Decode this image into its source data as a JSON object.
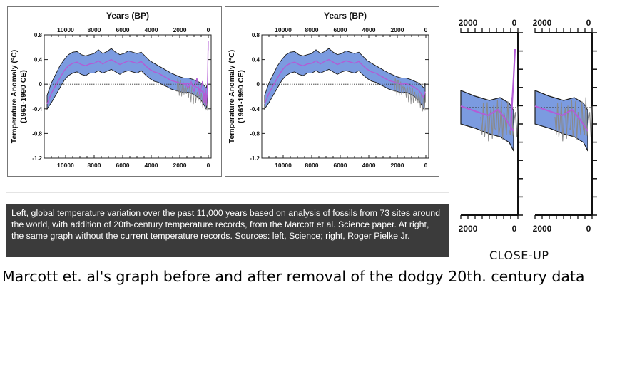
{
  "chart_data": [
    {
      "type": "area",
      "panel": "left",
      "title": "Years (BP)",
      "xlabel": "",
      "ylabel": "Temperature Anomaly (°C)",
      "ylabel2": "(1961-1990 CE)",
      "x_ticks": [
        "10000",
        "8000",
        "6000",
        "4000",
        "2000",
        "0"
      ],
      "y_ticks": [
        "0.8",
        "0.4",
        "0",
        "-0.4",
        "-0.8",
        "-1.2"
      ],
      "xlim": [
        11500,
        -200
      ],
      "ylim": [
        -1.2,
        0.8
      ],
      "reference_line": 0,
      "series": [
        {
          "x": [
            11300,
            11000,
            10700,
            10400,
            10100,
            9800,
            9500,
            9200,
            8900,
            8600,
            8300,
            8000,
            7700,
            7400,
            7100,
            6800,
            6500,
            6200,
            5900,
            5600,
            5300,
            5000,
            4700,
            4400,
            4100,
            3800,
            3500,
            3200,
            2900,
            2600,
            2300,
            2000,
            1700,
            1400,
            1100,
            800,
            500,
            300,
            150,
            50
          ],
          "values": [
            -0.32,
            -0.15,
            -0.02,
            0.1,
            0.22,
            0.3,
            0.34,
            0.36,
            0.32,
            0.3,
            0.33,
            0.34,
            0.38,
            0.33,
            0.37,
            0.4,
            0.36,
            0.32,
            0.35,
            0.38,
            0.36,
            0.34,
            0.37,
            0.3,
            0.24,
            0.2,
            0.18,
            0.14,
            0.1,
            0.06,
            0.04,
            0.02,
            0.0,
            0.01,
            -0.02,
            -0.05,
            -0.1,
            -0.16,
            -0.22,
            -0.12
          ],
          "upper": [
            -0.18,
            0.02,
            0.16,
            0.3,
            0.4,
            0.48,
            0.52,
            0.53,
            0.48,
            0.46,
            0.48,
            0.5,
            0.56,
            0.5,
            0.53,
            0.58,
            0.52,
            0.48,
            0.5,
            0.54,
            0.52,
            0.5,
            0.52,
            0.45,
            0.38,
            0.34,
            0.3,
            0.26,
            0.22,
            0.18,
            0.15,
            0.12,
            0.1,
            0.1,
            0.08,
            0.05,
            0.02,
            -0.02,
            -0.06,
            0.02
          ],
          "lower": [
            -0.4,
            -0.3,
            -0.18,
            -0.06,
            0.06,
            0.14,
            0.18,
            0.2,
            0.16,
            0.14,
            0.18,
            0.18,
            0.22,
            0.18,
            0.21,
            0.24,
            0.2,
            0.16,
            0.2,
            0.22,
            0.2,
            0.18,
            0.22,
            0.15,
            0.09,
            0.05,
            0.03,
            -0.01,
            -0.04,
            -0.08,
            -0.1,
            -0.12,
            -0.14,
            -0.13,
            -0.16,
            -0.2,
            -0.26,
            -0.34,
            -0.4,
            -0.28
          ]
        },
        {
          "x": [
            1700,
            1400,
            1200,
            1000,
            800,
            600,
            400,
            300,
            200,
            130,
            90,
            60,
            40,
            25,
            15,
            8,
            3
          ],
          "values": [
            0.02,
            -0.06,
            0.04,
            -0.12,
            0.1,
            -0.18,
            0.05,
            -0.3,
            -0.05,
            -0.35,
            -0.2,
            0.0,
            0.2,
            0.45,
            0.65,
            0.55,
            0.7
          ]
        }
      ]
    },
    {
      "type": "area",
      "panel": "right",
      "title": "Years (BP)",
      "xlabel": "",
      "ylabel": "Temperature Anomaly (°C)",
      "ylabel2": "(1961-1990 CE)",
      "x_ticks": [
        "10000",
        "8000",
        "6000",
        "4000",
        "2000",
        "0"
      ],
      "y_ticks": [
        "0.8",
        "0.4",
        "0",
        "-0.4",
        "-0.8",
        "-1.2"
      ],
      "xlim": [
        11500,
        -200
      ],
      "ylim": [
        -1.2,
        0.8
      ],
      "reference_line": 0
    },
    {
      "type": "line",
      "panel": "close-up-left",
      "x_ticks": [
        "2000",
        "0"
      ]
    },
    {
      "type": "line",
      "panel": "close-up-right",
      "x_ticks": [
        "2000",
        "0"
      ]
    }
  ],
  "caption": "Left, global temperature variation over the past 11,000 years based on analysis of fossils from 73 sites around the world, with addition of 20th-century temperature records, from the Marcott et al. Science paper. At right, the same graph without the current temperature records. Sources: left, Science; right, Roger Pielke Jr.",
  "closeup_label": "CLOSE-UP",
  "headline": "Marcott et. al's graph before and after removal of the dodgy 20th. century data",
  "colors": {
    "band": "#7b9be0",
    "band_edge": "#1c1c1c",
    "mean_line": "#b35cd6",
    "proxy_grey": "#8a8a8a",
    "caption_bg": "#3b3b3b"
  }
}
